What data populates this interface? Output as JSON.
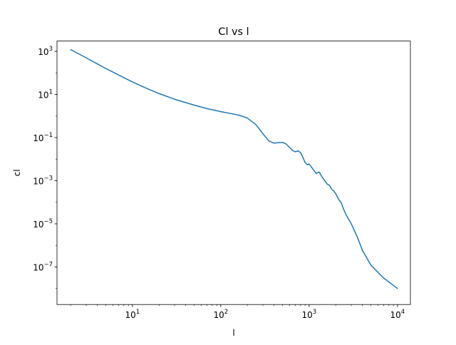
{
  "chart_data": {
    "type": "line",
    "title": "Cl vs l",
    "xlabel": "l",
    "ylabel": "cl",
    "xscale": "log",
    "yscale": "log",
    "xlim": [
      1.4,
      14000
    ],
    "ylim": [
      1.8e-09,
      3000
    ],
    "grid": false,
    "x_ticks": [
      {
        "value": 10,
        "base": "10",
        "exp": "1"
      },
      {
        "value": 100,
        "base": "10",
        "exp": "2"
      },
      {
        "value": 1000,
        "base": "10",
        "exp": "3"
      },
      {
        "value": 10000,
        "base": "10",
        "exp": "4"
      }
    ],
    "y_ticks": [
      {
        "value": 1e-07,
        "base": "10",
        "exp": "−7"
      },
      {
        "value": 1e-05,
        "base": "10",
        "exp": "−5"
      },
      {
        "value": 0.001,
        "base": "10",
        "exp": "−3"
      },
      {
        "value": 0.1,
        "base": "10",
        "exp": "−1"
      },
      {
        "value": 10,
        "base": "10",
        "exp": "1"
      },
      {
        "value": 1000,
        "base": "10",
        "exp": "3"
      }
    ],
    "colors": {
      "line": "#1f77b4"
    },
    "series": [
      {
        "x": [
          2,
          3,
          5,
          8,
          10,
          15,
          20,
          30,
          50,
          70,
          100,
          130,
          160,
          200,
          250,
          300,
          350,
          400,
          450,
          500,
          550,
          600,
          650,
          700,
          750,
          800,
          850,
          900,
          950,
          1000,
          1100,
          1200,
          1300,
          1400,
          1500,
          1600,
          1700,
          1800,
          1900,
          2000,
          2100,
          2200,
          2300,
          2400,
          2500,
          2600,
          2800,
          3000,
          3500,
          4000,
          5000,
          7000,
          10000
        ],
        "y": [
          1200,
          500,
          160,
          60,
          38,
          18,
          11,
          6,
          3.2,
          2.2,
          1.6,
          1.3,
          1.1,
          0.8,
          0.4,
          0.15,
          0.07,
          0.055,
          0.058,
          0.06,
          0.05,
          0.035,
          0.025,
          0.022,
          0.024,
          0.02,
          0.012,
          0.007,
          0.0055,
          0.006,
          0.0035,
          0.0022,
          0.0025,
          0.0015,
          0.001,
          0.0007,
          0.0006,
          0.0004,
          0.00033,
          0.00025,
          0.00017,
          0.00012,
          0.0001,
          6e-05,
          4e-05,
          2.8e-05,
          1.6e-05,
          1e-05,
          2.5e-06,
          6e-07,
          1.2e-07,
          3e-08,
          1e-08
        ]
      }
    ]
  }
}
